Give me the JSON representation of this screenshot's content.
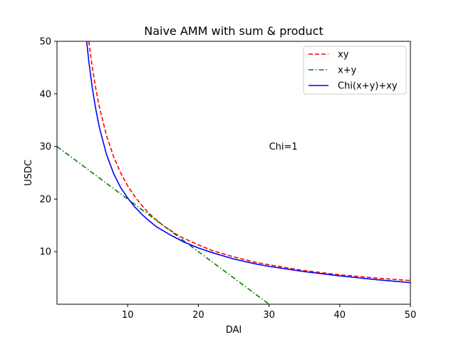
{
  "chart_data": {
    "type": "line",
    "title": "Naive AMM with sum & product",
    "xlabel": "DAI",
    "ylabel": "USDC",
    "xlim": [
      0,
      50
    ],
    "ylim": [
      0,
      50
    ],
    "x_ticks": [
      10,
      20,
      30,
      40,
      50
    ],
    "x_tick_labels": [
      "10",
      "20",
      "30",
      "40",
      "50"
    ],
    "y_ticks": [
      10,
      20,
      30,
      40,
      50
    ],
    "y_tick_labels": [
      "10",
      "20",
      "30",
      "40",
      "50"
    ],
    "grid": false,
    "legend_position": "top-right",
    "x_samples": [
      4.2,
      4.5,
      5,
      5.5,
      6,
      7,
      8,
      9,
      10,
      11,
      12,
      13,
      14,
      15,
      16,
      17,
      18,
      20,
      22,
      25,
      28,
      30,
      35,
      40,
      45,
      50
    ],
    "series": [
      {
        "name": "xy",
        "color": "#ff0000",
        "style": "dashed",
        "x": [
          4.5,
          5,
          5.5,
          6,
          7,
          8,
          9,
          10,
          11,
          12,
          13,
          14,
          15,
          16,
          17,
          18,
          20,
          22,
          25,
          28,
          30,
          35,
          40,
          45,
          50
        ],
        "y": [
          50,
          45,
          40.9,
          37.5,
          32.1,
          28.1,
          25,
          22.5,
          20.5,
          18.8,
          17.3,
          16.1,
          15,
          14.1,
          13.2,
          12.5,
          11.3,
          10.2,
          9,
          8,
          7.5,
          6.4,
          5.6,
          5,
          4.5
        ]
      },
      {
        "name": "x+y",
        "color": "#008000",
        "style": "dashdot",
        "x": [
          0,
          30
        ],
        "y": [
          30,
          0
        ]
      },
      {
        "name": "Chi(x+y)+xy",
        "color": "#0000ff",
        "style": "solid",
        "x": [
          4.2,
          4.5,
          5,
          5.5,
          6,
          7,
          8,
          9,
          10,
          11,
          12,
          13,
          14,
          15,
          16,
          17,
          18,
          20,
          22,
          25,
          28,
          30,
          35,
          40,
          45,
          50
        ],
        "y": [
          50,
          46.2,
          41.1,
          37,
          33.6,
          28.5,
          24.9,
          22.2,
          20.2,
          18.5,
          17.1,
          15.9,
          14.8,
          14,
          13.2,
          12.5,
          11.8,
          10.7,
          9.8,
          8.6,
          7.7,
          7.2,
          6.2,
          5.4,
          4.7,
          4.1
        ]
      }
    ],
    "annotations": [
      {
        "text": "Chi=1",
        "x": 30,
        "y": 30
      }
    ]
  }
}
